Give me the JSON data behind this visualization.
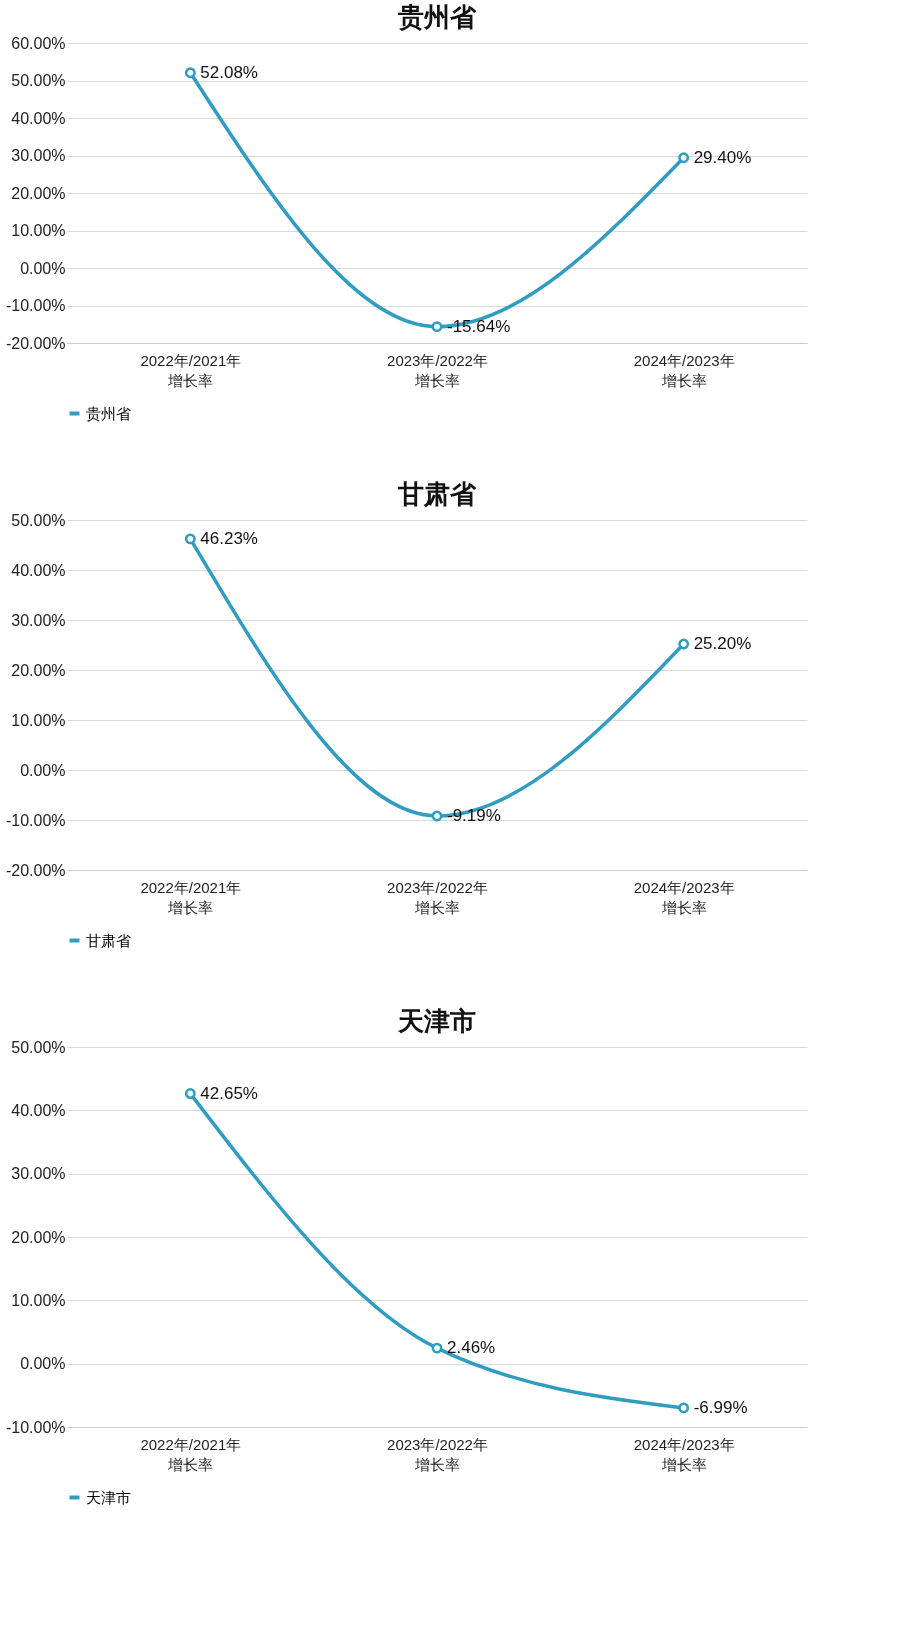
{
  "chart_data": [
    {
      "type": "line",
      "title": "贵州省",
      "categories": [
        "2022年/2021年增长率",
        "2023年/2022年增长率",
        "2024年/2023年增长率"
      ],
      "series": [
        {
          "name": "贵州省",
          "color": "#2f9cc2",
          "values": [
            52.08,
            -15.64,
            29.4
          ],
          "value_labels": [
            "52.08%",
            "-15.64%",
            "29.40%"
          ]
        }
      ],
      "ylim": [
        -20,
        60
      ],
      "yticks": [
        {
          "value": -20,
          "label": "-20.00%"
        },
        {
          "value": -10,
          "label": "-10.00%"
        },
        {
          "value": 0,
          "label": "0.00%"
        },
        {
          "value": 10,
          "label": "10.00%"
        },
        {
          "value": 20,
          "label": "20.00%"
        },
        {
          "value": 30,
          "label": "30.00%"
        },
        {
          "value": 40,
          "label": "40.00%"
        },
        {
          "value": 50,
          "label": "50.00%"
        },
        {
          "value": 60,
          "label": "60.00%"
        }
      ],
      "grid": "y",
      "legend": "bottom",
      "marker": "circle",
      "line_style": "solid"
    },
    {
      "type": "line",
      "title": "甘肃省",
      "categories": [
        "2022年/2021年增长率",
        "2023年/2022年增长率",
        "2024年/2023年增长率"
      ],
      "series": [
        {
          "name": "甘肃省",
          "color": "#2f9cc2",
          "values": [
            46.23,
            -9.19,
            25.2
          ],
          "value_labels": [
            "46.23%",
            "-9.19%",
            "25.20%"
          ]
        }
      ],
      "ylim": [
        -20,
        50
      ],
      "yticks": [
        {
          "value": -20,
          "label": "-20.00%"
        },
        {
          "value": -10,
          "label": "-10.00%"
        },
        {
          "value": 0,
          "label": "0.00%"
        },
        {
          "value": 10,
          "label": "10.00%"
        },
        {
          "value": 20,
          "label": "20.00%"
        },
        {
          "value": 30,
          "label": "30.00%"
        },
        {
          "value": 40,
          "label": "40.00%"
        },
        {
          "value": 50,
          "label": "50.00%"
        }
      ],
      "grid": "y",
      "legend": "bottom",
      "marker": "circle",
      "line_style": "solid"
    },
    {
      "type": "line",
      "title": "天津市",
      "categories": [
        "2022年/2021年增长率",
        "2023年/2022年增长率",
        "2024年/2023年增长率"
      ],
      "series": [
        {
          "name": "天津市",
          "color": "#2f9cc2",
          "values": [
            42.65,
            2.46,
            -6.99
          ],
          "value_labels": [
            "42.65%",
            "2.46%",
            "-6.99%"
          ]
        }
      ],
      "ylim": [
        -10,
        50
      ],
      "yticks": [
        {
          "value": -10,
          "label": "-10.00%"
        },
        {
          "value": 0,
          "label": "0.00%"
        },
        {
          "value": 10,
          "label": "10.00%"
        },
        {
          "value": 20,
          "label": "20.00%"
        },
        {
          "value": 30,
          "label": "30.00%"
        },
        {
          "value": 40,
          "label": "40.00%"
        },
        {
          "value": 50,
          "label": "50.00%"
        }
      ],
      "grid": "y",
      "legend": "bottom",
      "marker": "circle",
      "line_style": "solid"
    }
  ]
}
